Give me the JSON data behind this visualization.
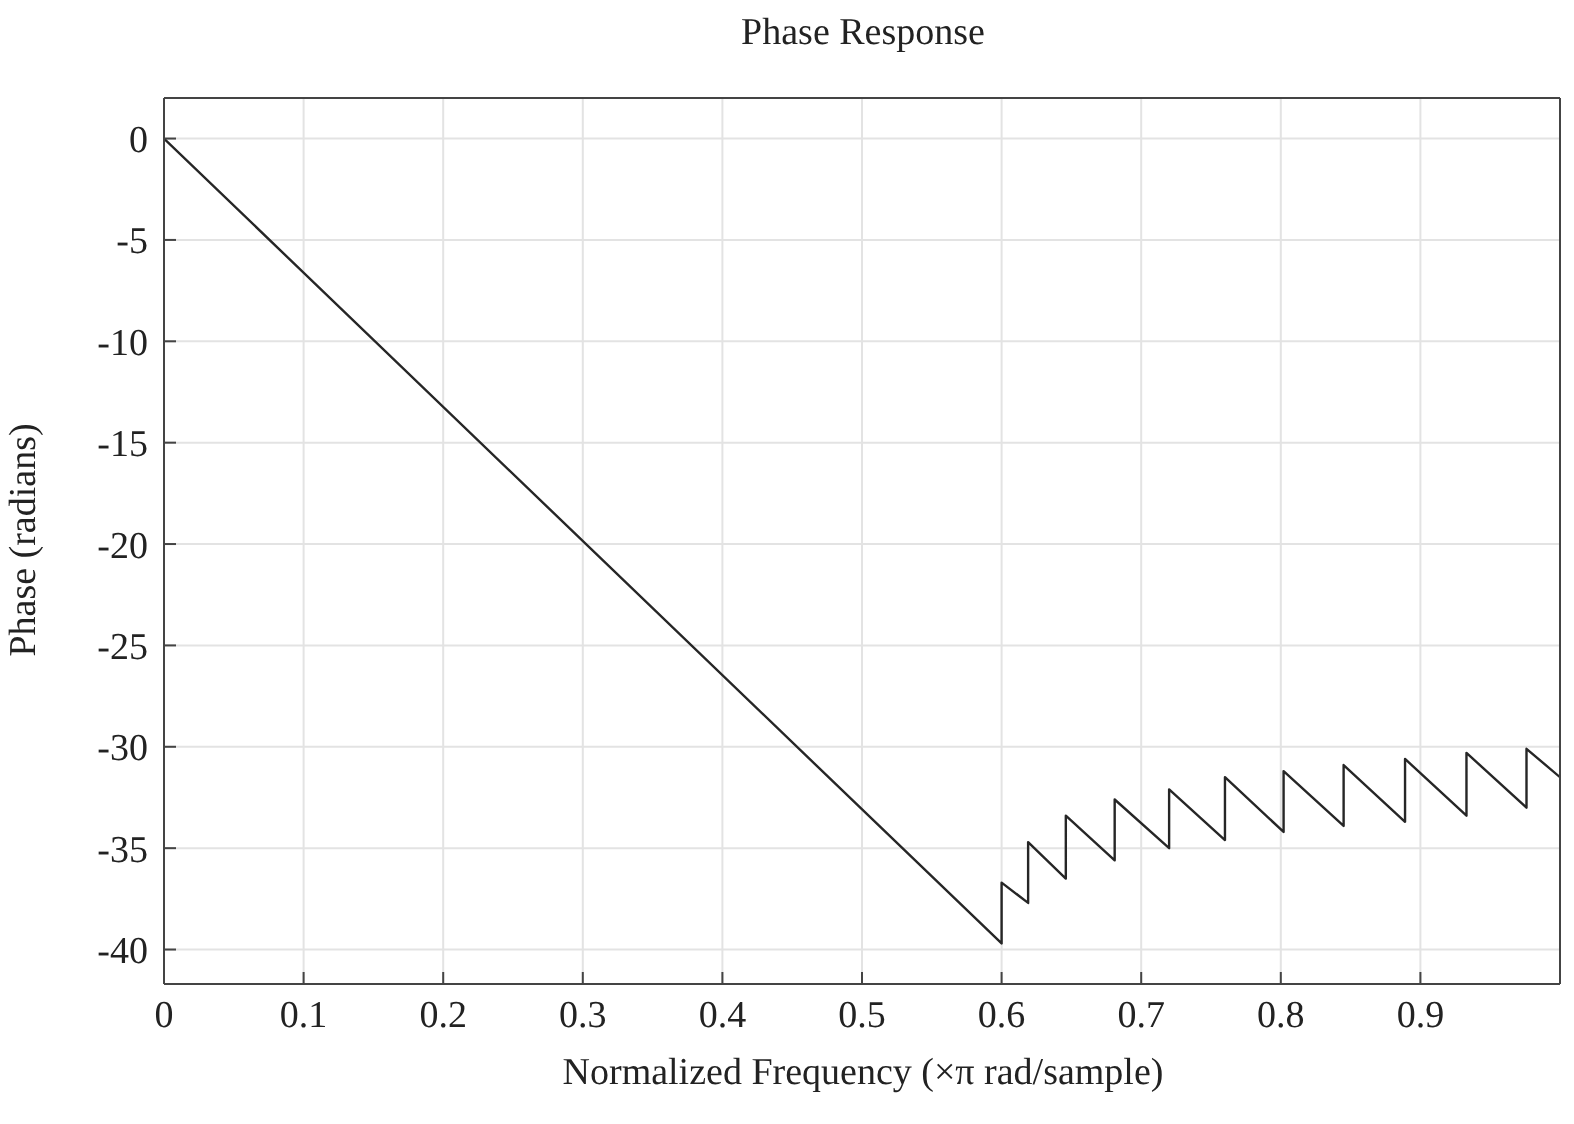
{
  "chart_data": {
    "type": "line",
    "title": "Phase Response",
    "xlabel": "Normalized Frequency (×π rad/sample)",
    "ylabel": "Phase (radians)",
    "x": [
      0,
      0.6,
      0.6,
      0.619,
      0.619,
      0.646,
      0.646,
      0.681,
      0.681,
      0.72,
      0.72,
      0.76,
      0.76,
      0.802,
      0.802,
      0.845,
      0.845,
      0.889,
      0.889,
      0.933,
      0.933,
      0.976,
      0.976,
      1
    ],
    "series": [
      {
        "color": "#262626",
        "values": [
          0,
          -39.7,
          -36.7,
          -37.7,
          -34.7,
          -36.5,
          -33.4,
          -35.6,
          -32.6,
          -35.0,
          -32.1,
          -34.6,
          -31.5,
          -34.2,
          -31.2,
          -33.9,
          -30.9,
          -33.7,
          -30.6,
          -33.4,
          -30.3,
          -33.0,
          -30.1,
          -31.5
        ]
      }
    ],
    "xlim": [
      0,
      1
    ],
    "xticks": [
      0,
      0.1,
      0.2,
      0.3,
      0.4,
      0.5,
      0.6,
      0.7,
      0.8,
      0.9
    ],
    "ylim": [
      -41.7,
      2
    ],
    "yticks": [
      -40,
      -35,
      -30,
      -25,
      -20,
      -15,
      -10,
      -5,
      0
    ],
    "grid": true,
    "legend": false,
    "marker": "none",
    "line_style": "solid"
  }
}
